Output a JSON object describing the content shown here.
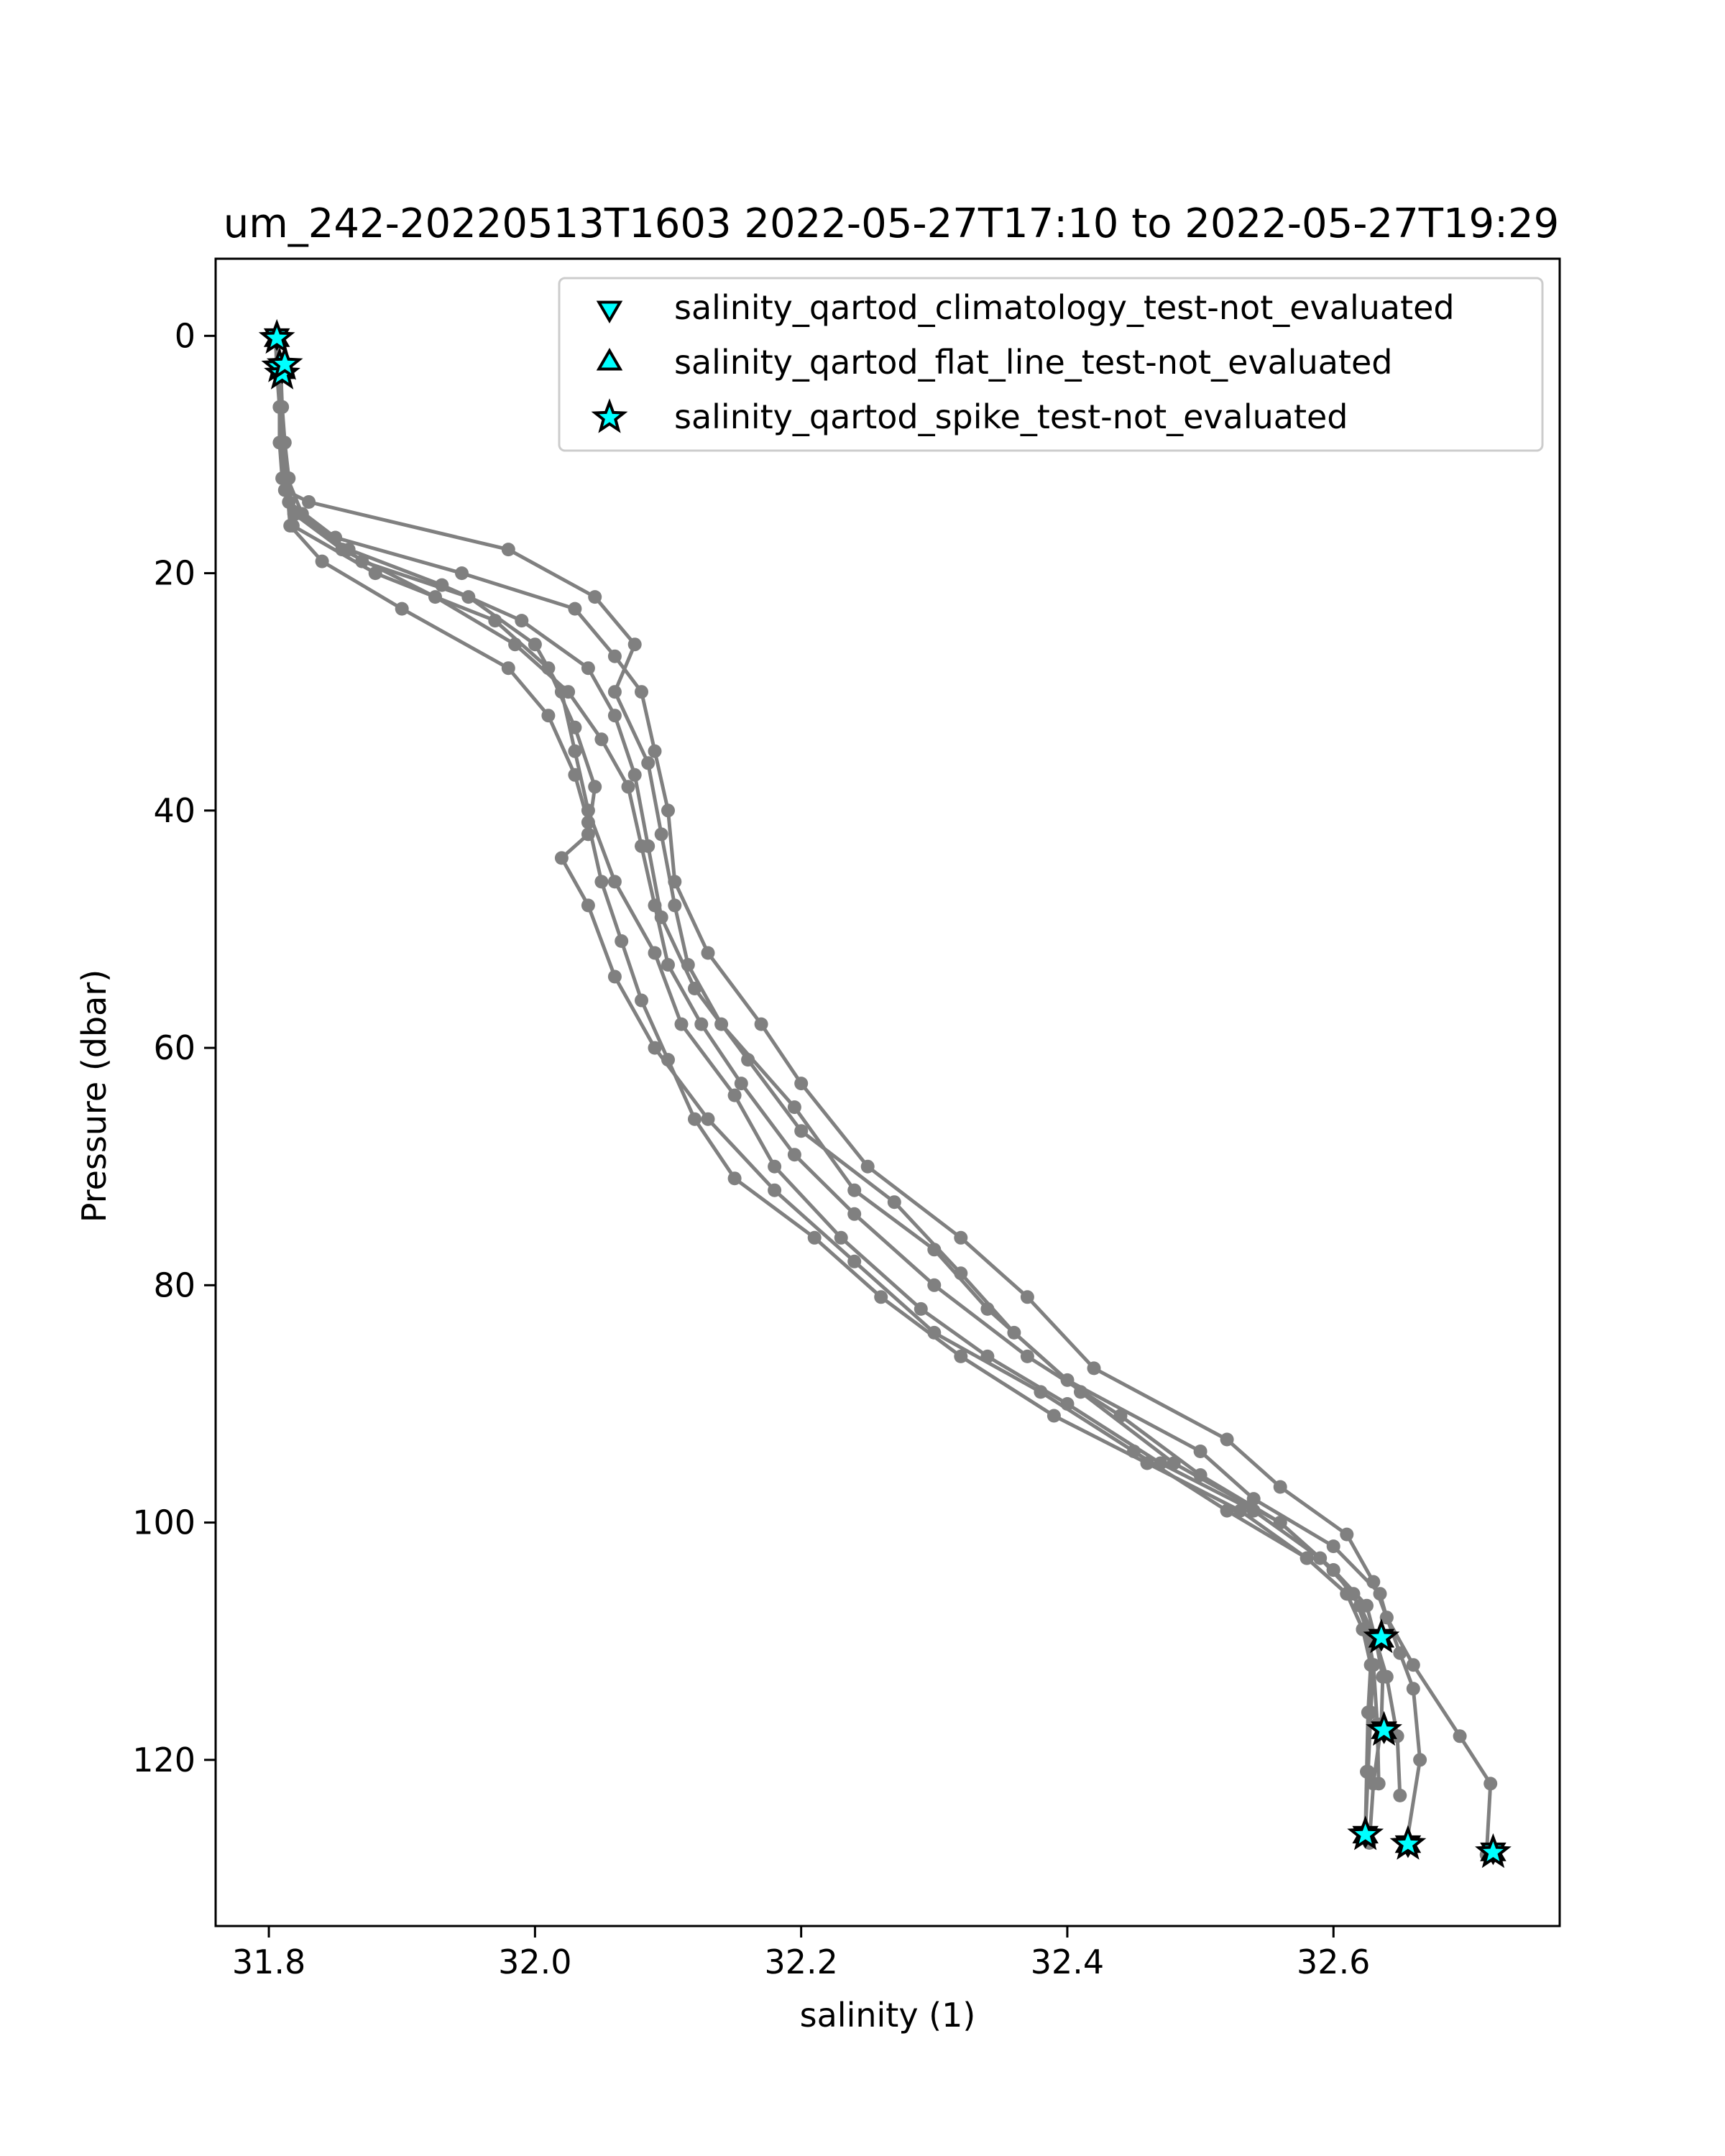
{
  "chart_data": {
    "type": "line",
    "title": "um_242-20220513T1603 2022-05-27T17:10 to 2022-05-27T19:29",
    "xlabel": "salinity (1)",
    "ylabel": "Pressure (dbar)",
    "xlim": [
      31.76,
      32.77
    ],
    "ylim": [
      134,
      -6.5
    ],
    "y_inverted": true,
    "grid": false,
    "legend_position": "upper-right",
    "x_ticks": [
      31.8,
      32.0,
      32.2,
      32.4,
      32.6
    ],
    "x_tick_labels": [
      "31.8",
      "32.0",
      "32.2",
      "32.4",
      "32.6"
    ],
    "y_ticks": [
      0,
      20,
      40,
      60,
      80,
      100,
      120
    ],
    "y_tick_labels": [
      "0",
      "20",
      "40",
      "60",
      "80",
      "100",
      "120"
    ],
    "line_color": "#808080",
    "flag_color": "#00ffff",
    "series": [
      {
        "x": [
          31.805,
          31.806,
          31.808,
          31.808,
          31.81,
          31.812,
          31.83,
          31.98,
          32.045,
          32.075,
          32.06,
          32.085,
          32.095,
          32.105,
          32.115,
          32.14,
          32.195,
          32.24,
          32.3,
          32.34,
          32.4,
          32.5,
          32.54,
          32.6,
          32.635,
          32.64,
          32.66,
          32.695,
          32.718,
          32.715
        ],
        "y": [
          0,
          3,
          6,
          9,
          12,
          13,
          14,
          18,
          22,
          26,
          30,
          36,
          42,
          48,
          53,
          58,
          65,
          72,
          77,
          82,
          88,
          94,
          98,
          102,
          106,
          108,
          112,
          118,
          122,
          128
        ]
      },
      {
        "x": [
          31.806,
          31.807,
          31.808,
          31.809,
          31.811,
          31.815,
          31.85,
          31.945,
          32.03,
          32.06,
          32.08,
          32.09,
          32.1,
          32.105,
          32.13,
          32.17,
          32.2,
          32.25,
          32.32,
          32.37,
          32.42,
          32.52,
          32.56,
          32.61,
          32.63,
          32.64,
          32.65,
          32.66,
          32.665,
          32.655
        ],
        "y": [
          0,
          3,
          6,
          9,
          12,
          14,
          17,
          20,
          23,
          27,
          30,
          35,
          40,
          46,
          52,
          58,
          63,
          70,
          76,
          81,
          87,
          93,
          97,
          101,
          105,
          108,
          111,
          114,
          120,
          127
        ]
      },
      {
        "x": [
          31.807,
          31.808,
          31.809,
          31.81,
          31.812,
          31.82,
          31.86,
          31.93,
          31.99,
          32.04,
          32.06,
          32.075,
          32.085,
          32.095,
          32.12,
          32.16,
          32.2,
          32.27,
          32.32,
          32.36,
          32.41,
          32.48,
          32.56,
          32.6,
          32.625,
          32.632,
          32.637,
          32.636,
          32.63,
          32.627
        ],
        "y": [
          0,
          3,
          6,
          9,
          12,
          15,
          18,
          21,
          24,
          28,
          32,
          37,
          43,
          49,
          55,
          61,
          67,
          73,
          79,
          84,
          89,
          95,
          100,
          104,
          107,
          110,
          113,
          117,
          122,
          127
        ]
      },
      {
        "x": [
          31.806,
          31.808,
          31.809,
          31.811,
          31.814,
          31.825,
          31.87,
          31.95,
          32.0,
          32.02,
          32.03,
          32.04,
          32.06,
          32.09,
          32.11,
          32.15,
          32.18,
          32.23,
          32.29,
          32.34,
          32.4,
          32.47,
          32.54,
          32.59,
          32.615,
          32.625,
          32.63,
          32.628,
          32.626,
          32.624
        ],
        "y": [
          0,
          3,
          6,
          9,
          12,
          15,
          19,
          22,
          26,
          30,
          35,
          40,
          46,
          52,
          58,
          64,
          70,
          76,
          82,
          86,
          90,
          95,
          99,
          103,
          106,
          109,
          112,
          116,
          121,
          126
        ]
      },
      {
        "x": [
          31.807,
          31.809,
          31.81,
          31.812,
          31.815,
          31.818,
          31.88,
          31.97,
          32.01,
          32.03,
          32.045,
          32.04,
          32.02,
          32.04,
          32.06,
          32.09,
          32.13,
          32.18,
          32.24,
          32.3,
          32.38,
          32.45,
          32.52,
          32.58,
          32.61,
          32.622,
          32.628,
          32.626,
          32.625,
          32.624
        ],
        "y": [
          0,
          3,
          6,
          9,
          12,
          16,
          20,
          24,
          28,
          33,
          38,
          42,
          44,
          48,
          54,
          60,
          66,
          72,
          78,
          84,
          89,
          94,
          99,
          103,
          106,
          109,
          112,
          116,
          121,
          126
        ]
      },
      {
        "x": [
          31.806,
          31.808,
          31.81,
          31.811,
          31.813,
          31.816,
          31.84,
          31.9,
          31.98,
          32.01,
          32.03,
          32.04,
          32.05,
          32.065,
          32.08,
          32.1,
          32.12,
          32.15,
          32.21,
          32.26,
          32.32,
          32.39,
          32.46,
          32.53,
          32.58,
          32.61,
          32.622,
          32.63,
          32.633,
          32.634
        ],
        "y": [
          0,
          3,
          6,
          9,
          12,
          16,
          19,
          23,
          28,
          32,
          37,
          41,
          46,
          51,
          56,
          61,
          66,
          71,
          76,
          81,
          86,
          91,
          95,
          99,
          103,
          106,
          109,
          112,
          117,
          122
        ]
      },
      {
        "x": [
          31.805,
          31.807,
          31.809,
          31.811,
          31.813,
          31.819,
          31.855,
          31.925,
          31.985,
          32.025,
          32.05,
          32.07,
          32.08,
          32.09,
          32.1,
          32.125,
          32.155,
          32.195,
          32.24,
          32.3,
          32.37,
          32.44,
          32.5,
          32.56,
          32.6,
          32.62,
          32.632,
          32.64,
          32.648,
          32.65
        ],
        "y": [
          0,
          3,
          6,
          9,
          12,
          15,
          18,
          22,
          26,
          30,
          34,
          38,
          43,
          48,
          53,
          58,
          63,
          69,
          74,
          80,
          86,
          91,
          96,
          100,
          104,
          107,
          110,
          113,
          118,
          123
        ]
      }
    ],
    "flags": [
      {
        "test": "spike",
        "x": 31.806,
        "y": 0.2
      },
      {
        "test": "climatology",
        "x": 31.806,
        "y": 0.0
      },
      {
        "test": "flat_line",
        "x": 31.806,
        "y": 0.3
      },
      {
        "test": "spike",
        "x": 31.808,
        "y": 2.6
      },
      {
        "test": "spike",
        "x": 31.81,
        "y": 3.2
      },
      {
        "test": "spike",
        "x": 31.812,
        "y": 2.4
      },
      {
        "test": "climatology",
        "x": 31.81,
        "y": 2.8
      },
      {
        "test": "flat_line",
        "x": 31.81,
        "y": 3.0
      },
      {
        "test": "spike",
        "x": 32.636,
        "y": 109.7
      },
      {
        "test": "climatology",
        "x": 32.636,
        "y": 109.6
      },
      {
        "test": "flat_line",
        "x": 32.636,
        "y": 109.9
      },
      {
        "test": "spike",
        "x": 32.638,
        "y": 117.5
      },
      {
        "test": "climatology",
        "x": 32.638,
        "y": 117.4
      },
      {
        "test": "flat_line",
        "x": 32.638,
        "y": 117.6
      },
      {
        "test": "spike",
        "x": 32.624,
        "y": 126.3
      },
      {
        "test": "climatology",
        "x": 32.624,
        "y": 126.2
      },
      {
        "test": "flat_line",
        "x": 32.624,
        "y": 126.4
      },
      {
        "test": "spike",
        "x": 32.656,
        "y": 127.1
      },
      {
        "test": "climatology",
        "x": 32.656,
        "y": 127.0
      },
      {
        "test": "flat_line",
        "x": 32.656,
        "y": 127.2
      },
      {
        "test": "spike",
        "x": 32.72,
        "y": 127.8
      },
      {
        "test": "climatology",
        "x": 32.72,
        "y": 127.6
      },
      {
        "test": "flat_line",
        "x": 32.72,
        "y": 127.9
      }
    ],
    "legend": [
      {
        "marker": "triangle-down",
        "label": "salinity_qartod_climatology_test-not_evaluated"
      },
      {
        "marker": "triangle-up",
        "label": "salinity_qartod_flat_line_test-not_evaluated"
      },
      {
        "marker": "star",
        "label": "salinity_qartod_spike_test-not_evaluated"
      }
    ]
  }
}
